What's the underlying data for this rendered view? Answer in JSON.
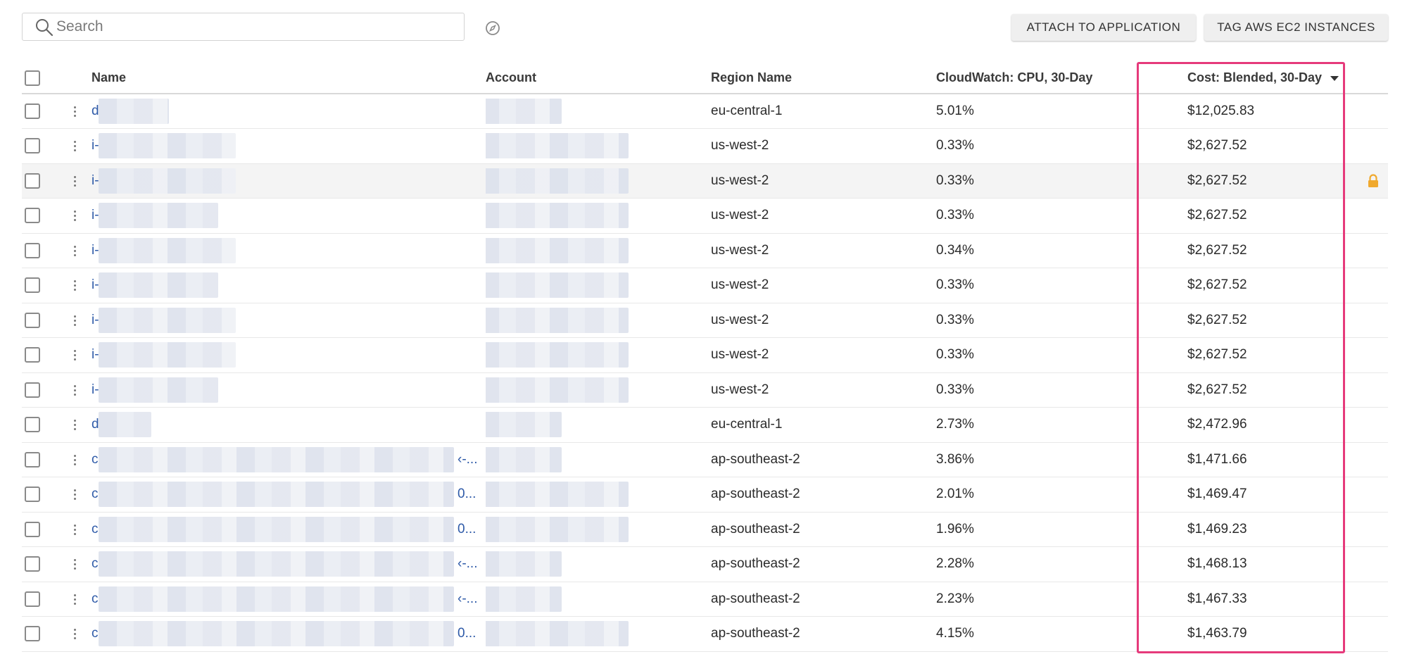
{
  "search": {
    "placeholder": "Search",
    "value": ""
  },
  "actions": {
    "attach_label": "ATTACH TO APPLICATION",
    "tag_label": "TAG AWS EC2 INSTANCES"
  },
  "columns": {
    "name": "Name",
    "account": "Account",
    "region": "Region Name",
    "cpu": "CloudWatch: CPU, 30-Day",
    "cost": "Cost: Blended, 30-Day"
  },
  "sort": {
    "column": "cost",
    "direction": "descending"
  },
  "colors": {
    "link": "#2e5aa8",
    "highlight": "#e63a7b",
    "lock": "#f0a92e"
  },
  "rows": [
    {
      "name_prefix": "d",
      "name_suffix": "",
      "region": "eu-central-1",
      "cpu": "5.01%",
      "cost": "$12,025.83",
      "locked": false
    },
    {
      "name_prefix": "i-",
      "name_suffix": "",
      "region": "us-west-2",
      "cpu": "0.33%",
      "cost": "$2,627.52",
      "locked": false
    },
    {
      "name_prefix": "i-",
      "name_suffix": "",
      "region": "us-west-2",
      "cpu": "0.33%",
      "cost": "$2,627.52",
      "locked": true
    },
    {
      "name_prefix": "i-",
      "name_suffix": "",
      "region": "us-west-2",
      "cpu": "0.33%",
      "cost": "$2,627.52",
      "locked": false
    },
    {
      "name_prefix": "i-",
      "name_suffix": "",
      "region": "us-west-2",
      "cpu": "0.34%",
      "cost": "$2,627.52",
      "locked": false
    },
    {
      "name_prefix": "i-",
      "name_suffix": "",
      "region": "us-west-2",
      "cpu": "0.33%",
      "cost": "$2,627.52",
      "locked": false
    },
    {
      "name_prefix": "i-",
      "name_suffix": "",
      "region": "us-west-2",
      "cpu": "0.33%",
      "cost": "$2,627.52",
      "locked": false
    },
    {
      "name_prefix": "i-",
      "name_suffix": "",
      "region": "us-west-2",
      "cpu": "0.33%",
      "cost": "$2,627.52",
      "locked": false
    },
    {
      "name_prefix": "i-",
      "name_suffix": "",
      "region": "us-west-2",
      "cpu": "0.33%",
      "cost": "$2,627.52",
      "locked": false
    },
    {
      "name_prefix": "d",
      "name_suffix": "",
      "region": "eu-central-1",
      "cpu": "2.73%",
      "cost": "$2,472.96",
      "locked": false
    },
    {
      "name_prefix": "c",
      "name_suffix": "‹-...",
      "region": "ap-southeast-2",
      "cpu": "3.86%",
      "cost": "$1,471.66",
      "locked": false
    },
    {
      "name_prefix": "c",
      "name_suffix": "0...",
      "region": "ap-southeast-2",
      "cpu": "2.01%",
      "cost": "$1,469.47",
      "locked": false
    },
    {
      "name_prefix": "c",
      "name_suffix": "0...",
      "region": "ap-southeast-2",
      "cpu": "1.96%",
      "cost": "$1,469.23",
      "locked": false
    },
    {
      "name_prefix": "c",
      "name_suffix": "‹-...",
      "region": "ap-southeast-2",
      "cpu": "2.28%",
      "cost": "$1,468.13",
      "locked": false
    },
    {
      "name_prefix": "c",
      "name_suffix": "‹-...",
      "region": "ap-southeast-2",
      "cpu": "2.23%",
      "cost": "$1,467.33",
      "locked": false
    },
    {
      "name_prefix": "c",
      "name_suffix": "0...",
      "region": "ap-southeast-2",
      "cpu": "4.15%",
      "cost": "$1,463.79",
      "locked": false
    }
  ]
}
